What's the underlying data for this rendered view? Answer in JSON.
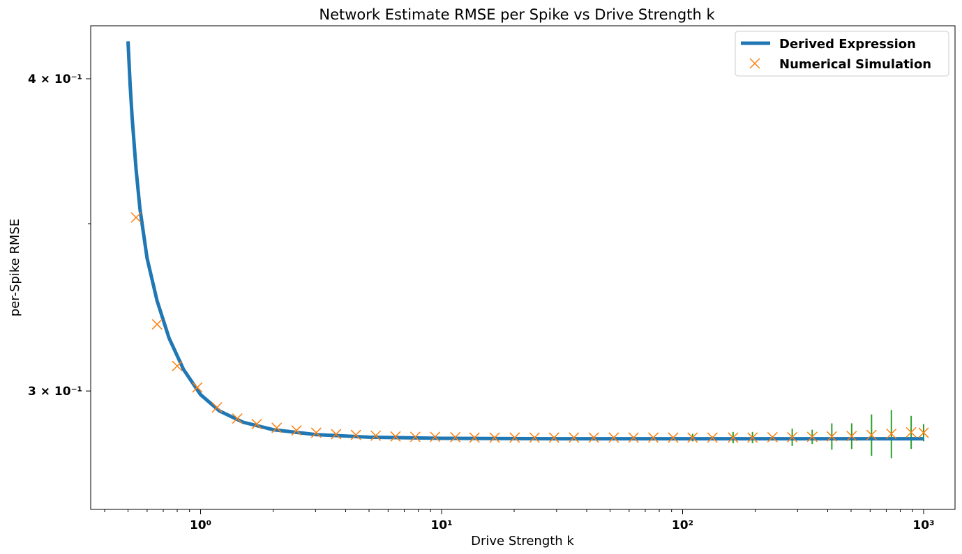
{
  "chart_data": {
    "type": "line",
    "title": "Network Estimate RMSE per Spike vs Drive Strength k",
    "xlabel": "Drive Strength k",
    "ylabel": "per-Spike RMSE",
    "xscale": "log",
    "yscale": "log",
    "xlim": [
      0.35,
      1350
    ],
    "ylim": [
      0.269,
      0.42
    ],
    "x_ticks": [
      {
        "value": 1,
        "label": "10⁰"
      },
      {
        "value": 10,
        "label": "10¹"
      },
      {
        "value": 100,
        "label": "10²"
      },
      {
        "value": 1000,
        "label": "10³"
      }
    ],
    "y_ticks": [
      {
        "value": 0.3,
        "label": "3 × 10⁻¹"
      },
      {
        "value": 0.4,
        "label": "4 × 10⁻¹"
      }
    ],
    "grid": false,
    "legend_position": "top-right",
    "colors": {
      "derived": "#1f77b4",
      "simulation": "#ff7f0e",
      "errorbar": "#2ca02c"
    },
    "series": [
      {
        "name": "Derived Expression",
        "kind": "line",
        "x": [
          0.5,
          0.51,
          0.52,
          0.54,
          0.56,
          0.6,
          0.66,
          0.74,
          0.85,
          1.0,
          1.2,
          1.5,
          2.0,
          3.0,
          5.0,
          10,
          30,
          100,
          300,
          1000
        ],
        "y": [
          0.414,
          0.398,
          0.386,
          0.368,
          0.355,
          0.339,
          0.326,
          0.315,
          0.306,
          0.299,
          0.2945,
          0.2915,
          0.2895,
          0.2882,
          0.2875,
          0.2872,
          0.2871,
          0.2871,
          0.2871,
          0.2871
        ]
      },
      {
        "name": "Numerical Simulation",
        "kind": "scatter",
        "x": [
          0.54,
          0.66,
          0.8,
          0.97,
          1.17,
          1.42,
          1.71,
          2.07,
          2.5,
          3.02,
          3.65,
          4.41,
          5.33,
          6.44,
          7.78,
          9.4,
          11.4,
          13.7,
          16.6,
          20.1,
          24.3,
          29.3,
          35.4,
          42.8,
          51.8,
          62.6,
          75.6,
          91.4,
          110,
          133,
          162,
          195,
          236,
          285,
          345,
          416,
          503,
          608,
          735,
          888,
          1000
        ],
        "y": [
          0.352,
          0.319,
          0.307,
          0.301,
          0.2955,
          0.2925,
          0.291,
          0.29,
          0.2893,
          0.2887,
          0.2883,
          0.2881,
          0.2879,
          0.2877,
          0.2876,
          0.2876,
          0.2875,
          0.2874,
          0.2874,
          0.2874,
          0.2874,
          0.2874,
          0.2874,
          0.2874,
          0.2874,
          0.2874,
          0.2874,
          0.2874,
          0.2874,
          0.2874,
          0.2874,
          0.2874,
          0.2875,
          0.2875,
          0.2876,
          0.2877,
          0.2878,
          0.2881,
          0.2884,
          0.2888,
          0.2887
        ],
        "err": [
          0,
          0,
          0,
          0,
          0,
          0,
          0,
          0,
          0,
          0,
          0,
          0,
          0,
          0,
          0,
          0,
          0,
          0,
          0,
          0,
          0,
          0,
          0,
          0,
          0,
          0,
          0,
          0,
          0.001,
          0.0003,
          0.0015,
          0.0015,
          0.0003,
          0.0023,
          0.0019,
          0.0035,
          0.0034,
          0.0055,
          0.0064,
          0.0044,
          0.0023
        ]
      }
    ]
  }
}
